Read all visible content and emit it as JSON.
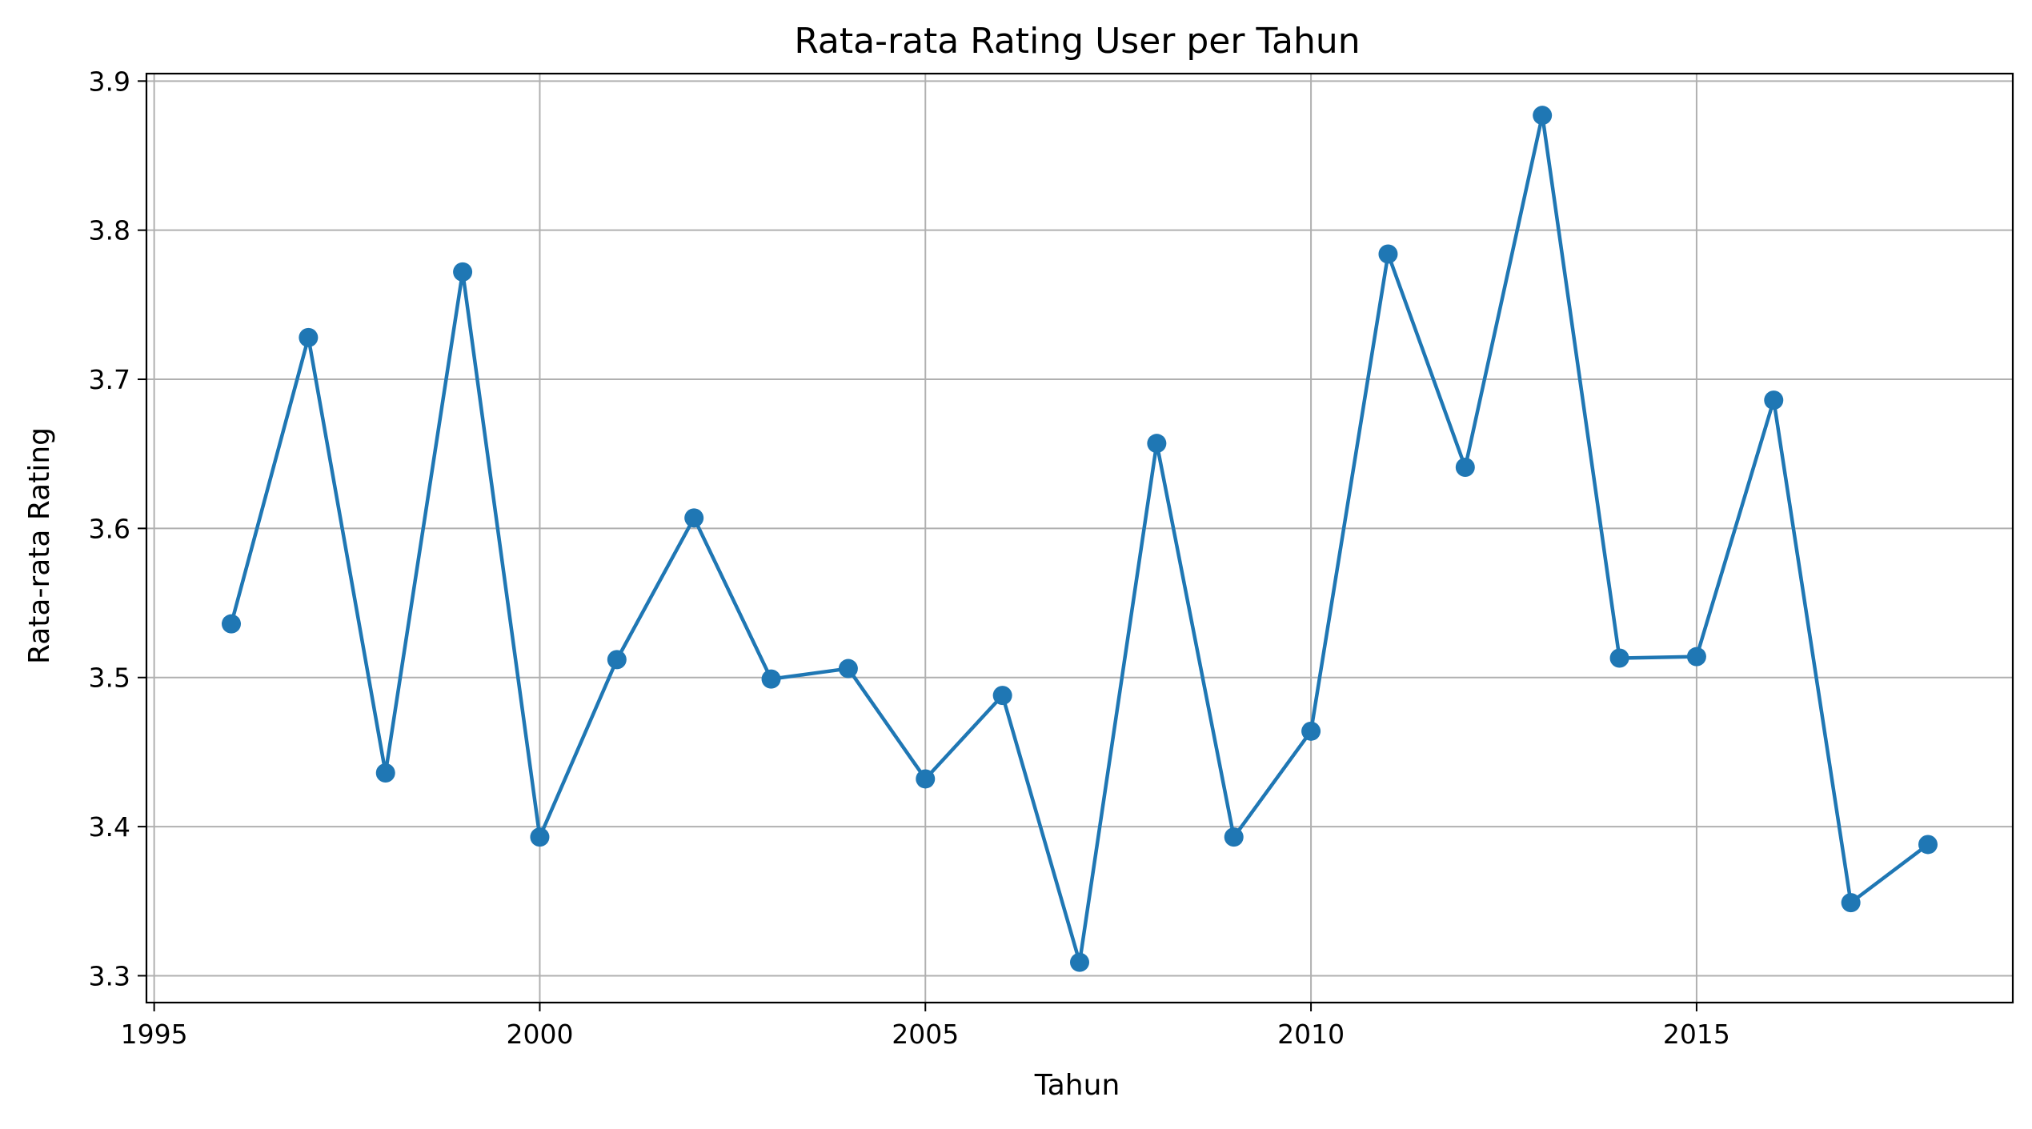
{
  "chart_data": {
    "type": "line",
    "title": "Rata-rata Rating User per Tahun",
    "xlabel": "Tahun",
    "ylabel": "Rata-rata Rating",
    "x_ticks": [
      1995,
      2000,
      2005,
      2010,
      2015
    ],
    "x_tick_labels": [
      "1995",
      "2000",
      "2005",
      "2010",
      "2015"
    ],
    "y_ticks": [
      3.3,
      3.4,
      3.5,
      3.6,
      3.7,
      3.8,
      3.9
    ],
    "y_tick_labels": [
      "3.3",
      "3.4",
      "3.5",
      "3.6",
      "3.7",
      "3.8",
      "3.9"
    ],
    "xlim": [
      1994.9,
      2019.1
    ],
    "ylim": [
      3.282,
      3.905
    ],
    "grid": true,
    "legend": "none",
    "marker": "circle",
    "color": "#1f77b4",
    "series": [
      {
        "x": [
          1996,
          1997,
          1998,
          1999,
          2000,
          2001,
          2002,
          2003,
          2004,
          2005,
          2006,
          2007,
          2008,
          2009,
          2010,
          2011,
          2012,
          2013,
          2014,
          2015,
          2016,
          2017,
          2018
        ],
        "values": [
          3.536,
          3.728,
          3.436,
          3.772,
          3.393,
          3.512,
          3.607,
          3.499,
          3.506,
          3.432,
          3.488,
          3.309,
          3.657,
          3.393,
          3.464,
          3.784,
          3.641,
          3.877,
          3.513,
          3.514,
          3.686,
          3.349,
          3.388
        ]
      }
    ]
  }
}
